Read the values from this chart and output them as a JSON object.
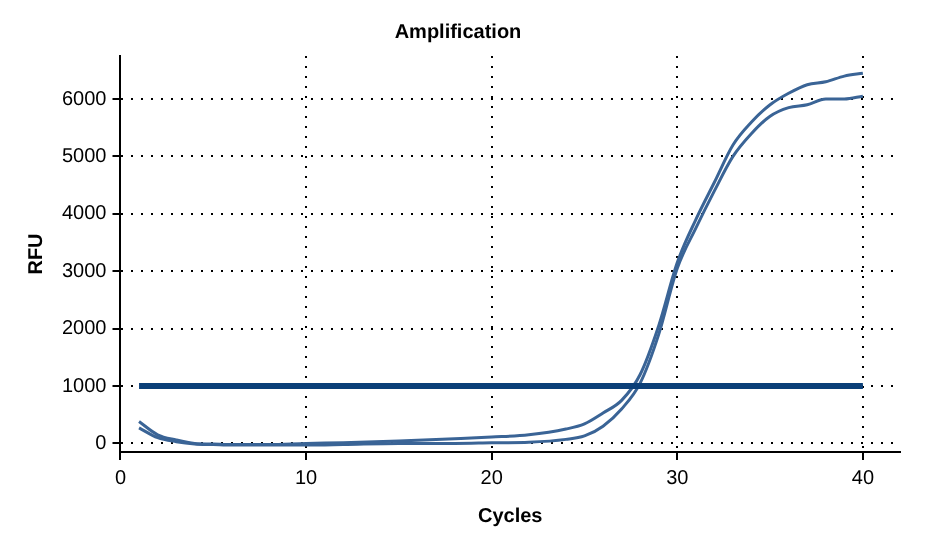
{
  "chart_data": {
    "type": "line",
    "title": "Amplification",
    "xlabel": "Cycles",
    "ylabel": "RFU",
    "x": [
      1,
      2,
      3,
      4,
      5,
      6,
      8,
      10,
      12,
      15,
      18,
      20,
      22,
      24,
      25,
      26,
      27,
      28,
      29,
      30,
      31,
      32,
      33,
      34,
      35,
      36,
      37,
      38,
      39,
      40
    ],
    "series": [
      {
        "color": "#3a6496",
        "values": [
          380,
          150,
          60,
          0,
          -10,
          -20,
          -20,
          0,
          10,
          40,
          80,
          110,
          150,
          250,
          340,
          530,
          750,
          1200,
          2050,
          3150,
          3900,
          4550,
          5200,
          5600,
          5900,
          6100,
          6250,
          6300,
          6400,
          6450
        ]
      },
      {
        "color": "#3a6496",
        "values": [
          270,
          100,
          30,
          -10,
          -20,
          -30,
          -30,
          -30,
          -20,
          0,
          0,
          10,
          20,
          70,
          130,
          300,
          600,
          1050,
          1900,
          3050,
          3750,
          4400,
          5000,
          5400,
          5700,
          5850,
          5900,
          6000,
          6000,
          6050
        ]
      }
    ],
    "ref_lines": [
      {
        "axis": "y",
        "value": 1000,
        "color": "#0b3f78"
      }
    ],
    "xlim": [
      0,
      42
    ],
    "xticks": [
      0,
      10,
      20,
      30,
      40
    ],
    "ylim": [
      -150,
      6750
    ],
    "yticks": [
      0,
      1000,
      2000,
      3000,
      4000,
      5000,
      6000
    ],
    "grid": true,
    "legend": false,
    "marker": "none",
    "line_style": "solid"
  }
}
